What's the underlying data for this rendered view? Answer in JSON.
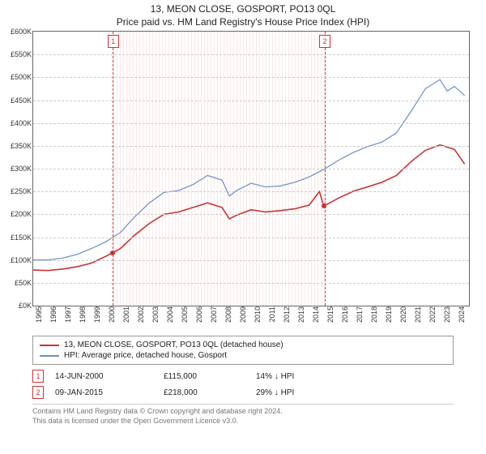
{
  "title": "13, MEON CLOSE, GOSPORT, PO13 0QL",
  "subtitle": "Price paid vs. HM Land Registry's House Price Index (HPI)",
  "chart": {
    "type": "line",
    "background_color": "#ffffff",
    "grid_color": "#cccccc",
    "axis_color": "#666666",
    "text_color": "#333333",
    "xlim": [
      1995,
      2025
    ],
    "ylim": [
      0,
      600000
    ],
    "ytick_step": 50000,
    "ytick_prefix": "£",
    "ytick_suffix": "K",
    "xticks": [
      1995,
      1996,
      1997,
      1998,
      1999,
      2000,
      2001,
      2002,
      2003,
      2004,
      2005,
      2006,
      2007,
      2008,
      2009,
      2010,
      2011,
      2012,
      2013,
      2014,
      2015,
      2016,
      2017,
      2018,
      2019,
      2020,
      2021,
      2022,
      2023,
      2024
    ],
    "series": [
      {
        "name": "property",
        "label": "13, MEON CLOSE, GOSPORT, PO13 0QL (detached house)",
        "color": "#cc3333",
        "line_width": 1.6,
        "data": [
          [
            1995,
            78000
          ],
          [
            1996,
            77000
          ],
          [
            1997,
            80000
          ],
          [
            1998,
            85000
          ],
          [
            1999,
            93000
          ],
          [
            2000,
            108000
          ],
          [
            2001,
            125000
          ],
          [
            2002,
            155000
          ],
          [
            2003,
            180000
          ],
          [
            2004,
            200000
          ],
          [
            2005,
            205000
          ],
          [
            2006,
            215000
          ],
          [
            2007,
            225000
          ],
          [
            2008,
            215000
          ],
          [
            2008.5,
            190000
          ],
          [
            2009,
            198000
          ],
          [
            2010,
            210000
          ],
          [
            2011,
            205000
          ],
          [
            2012,
            208000
          ],
          [
            2013,
            212000
          ],
          [
            2014,
            220000
          ],
          [
            2014.7,
            250000
          ],
          [
            2015,
            218000
          ],
          [
            2016,
            235000
          ],
          [
            2017,
            250000
          ],
          [
            2018,
            260000
          ],
          [
            2019,
            270000
          ],
          [
            2020,
            285000
          ],
          [
            2021,
            315000
          ],
          [
            2022,
            340000
          ],
          [
            2023,
            352000
          ],
          [
            2024,
            342000
          ],
          [
            2024.7,
            310000
          ]
        ]
      },
      {
        "name": "hpi",
        "label": "HPI: Average price, detached house, Gosport",
        "color": "#6a8fc7",
        "line_width": 1.2,
        "data": [
          [
            1995,
            100000
          ],
          [
            1996,
            100000
          ],
          [
            1997,
            104000
          ],
          [
            1998,
            112000
          ],
          [
            1999,
            125000
          ],
          [
            2000,
            140000
          ],
          [
            2001,
            160000
          ],
          [
            2002,
            195000
          ],
          [
            2003,
            225000
          ],
          [
            2004,
            248000
          ],
          [
            2005,
            252000
          ],
          [
            2006,
            265000
          ],
          [
            2007,
            285000
          ],
          [
            2008,
            275000
          ],
          [
            2008.5,
            240000
          ],
          [
            2009,
            252000
          ],
          [
            2010,
            268000
          ],
          [
            2011,
            260000
          ],
          [
            2012,
            262000
          ],
          [
            2013,
            270000
          ],
          [
            2014,
            282000
          ],
          [
            2015,
            298000
          ],
          [
            2016,
            318000
          ],
          [
            2017,
            335000
          ],
          [
            2018,
            348000
          ],
          [
            2019,
            358000
          ],
          [
            2020,
            378000
          ],
          [
            2021,
            425000
          ],
          [
            2022,
            475000
          ],
          [
            2023,
            495000
          ],
          [
            2023.5,
            470000
          ],
          [
            2024,
            480000
          ],
          [
            2024.7,
            460000
          ]
        ]
      }
    ],
    "sale_markers": [
      {
        "id": "1",
        "year": 2000.45,
        "price": 115000
      },
      {
        "id": "2",
        "year": 2015.02,
        "price": 218000
      }
    ],
    "hatched_region": {
      "from": 2000.45,
      "to": 2015.02,
      "color": "#d04a4a"
    }
  },
  "legend": {
    "items": [
      {
        "color": "#cc3333",
        "label_ref": "chart.series.0.label"
      },
      {
        "color": "#6a8fc7",
        "label_ref": "chart.series.1.label"
      }
    ]
  },
  "sales": [
    {
      "id": "1",
      "date": "14-JUN-2000",
      "price": "£115,000",
      "delta": "14%",
      "direction": "down",
      "vs": "HPI"
    },
    {
      "id": "2",
      "date": "09-JAN-2015",
      "price": "£218,000",
      "delta": "29%",
      "direction": "down",
      "vs": "HPI"
    }
  ],
  "footer": {
    "line1": "Contains HM Land Registry data © Crown copyright and database right 2024.",
    "line2": "This data is licensed under the Open Government Licence v3.0."
  }
}
